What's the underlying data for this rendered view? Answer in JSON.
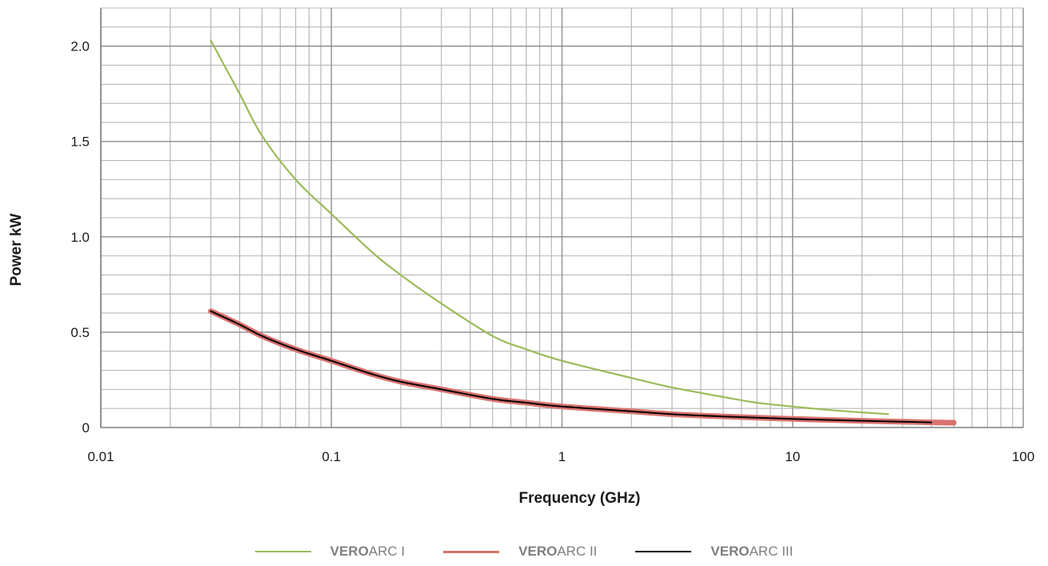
{
  "chart_data": {
    "type": "line",
    "x_scale": "log",
    "xlim": [
      0.01,
      100
    ],
    "ylim": [
      0,
      2.2
    ],
    "xlabel": "Frequency (GHz)",
    "ylabel": "Power kW",
    "x_ticks": [
      {
        "value": 0.01,
        "label": "0.01"
      },
      {
        "value": 0.1,
        "label": "0.1"
      },
      {
        "value": 1,
        "label": "1"
      },
      {
        "value": 10,
        "label": "10"
      },
      {
        "value": 100,
        "label": "100"
      }
    ],
    "y_ticks": [
      {
        "value": 0,
        "label": "0"
      },
      {
        "value": 0.5,
        "label": "0.5"
      },
      {
        "value": 1.0,
        "label": "1.0"
      },
      {
        "value": 1.5,
        "label": "1.5"
      },
      {
        "value": 2.0,
        "label": "2.0"
      }
    ],
    "grid": true,
    "legend_position": "bottom",
    "series": [
      {
        "name_bold": "VERO",
        "name_rest": "ARC I",
        "color": "#9bbb59",
        "x": [
          0.03,
          0.04,
          0.05,
          0.07,
          0.1,
          0.15,
          0.2,
          0.3,
          0.5,
          0.7,
          1,
          2,
          3,
          5,
          7,
          10,
          15,
          26
        ],
        "y": [
          2.03,
          1.75,
          1.53,
          1.3,
          1.12,
          0.92,
          0.8,
          0.65,
          0.48,
          0.41,
          0.35,
          0.26,
          0.21,
          0.16,
          0.13,
          0.11,
          0.09,
          0.07
        ]
      },
      {
        "name_bold": "VERO",
        "name_rest": "ARC II",
        "color": "#d9726e",
        "x": [
          0.03,
          0.04,
          0.05,
          0.07,
          0.1,
          0.15,
          0.2,
          0.3,
          0.5,
          0.7,
          1,
          2,
          3,
          5,
          10,
          20,
          40,
          50
        ],
        "y": [
          0.61,
          0.54,
          0.48,
          0.41,
          0.35,
          0.28,
          0.24,
          0.2,
          0.15,
          0.13,
          0.11,
          0.085,
          0.07,
          0.058,
          0.045,
          0.035,
          0.027,
          0.025
        ]
      },
      {
        "name_bold": "VERO",
        "name_rest": "ARC III",
        "color": "#000000",
        "x": [
          0.03,
          0.04,
          0.05,
          0.07,
          0.1,
          0.15,
          0.2,
          0.3,
          0.5,
          0.7,
          1,
          2,
          3,
          5,
          10,
          20,
          40
        ],
        "y": [
          0.61,
          0.54,
          0.48,
          0.41,
          0.35,
          0.28,
          0.24,
          0.2,
          0.15,
          0.13,
          0.11,
          0.085,
          0.07,
          0.058,
          0.045,
          0.035,
          0.027
        ]
      }
    ]
  }
}
